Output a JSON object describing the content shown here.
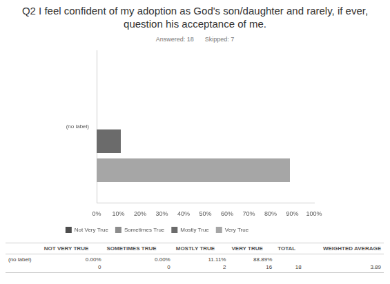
{
  "chart_data": {
    "type": "bar",
    "orientation": "horizontal",
    "title": "Q2 I feel confident of my adoption as God's son/daughter and rarely, if ever, question his acceptance of me.",
    "subtitle": [
      "Answered: 18",
      "Skipped: 7"
    ],
    "categories": [
      "(no label)"
    ],
    "series": [
      {
        "name": "Not Very True",
        "color": "#4d4d4d",
        "values": [
          0
        ]
      },
      {
        "name": "Sometimes True",
        "color": "#8c8c8c",
        "values": [
          0
        ]
      },
      {
        "name": "Mostly True",
        "color": "#6b6b6b",
        "values": [
          11.11
        ]
      },
      {
        "name": "Very True",
        "color": "#a6a6a6",
        "values": [
          88.89
        ]
      }
    ],
    "xlim": [
      0,
      100
    ],
    "xticks": [
      {
        "value": 0,
        "label": "0%"
      },
      {
        "value": 10,
        "label": "10%"
      },
      {
        "value": 20,
        "label": "20%"
      },
      {
        "value": 30,
        "label": "30%"
      },
      {
        "value": 40,
        "label": "40%"
      },
      {
        "value": 50,
        "label": "50%"
      },
      {
        "value": 60,
        "label": "60%"
      },
      {
        "value": 70,
        "label": "70%"
      },
      {
        "value": 80,
        "label": "80%"
      },
      {
        "value": 90,
        "label": "90%"
      },
      {
        "value": 100,
        "label": "100%"
      }
    ],
    "grid": false,
    "legend": "bottom"
  },
  "table": {
    "columns": [
      null,
      "NOT VERY TRUE",
      "SOMETIMES TRUE",
      "MOSTLY TRUE",
      "VERY TRUE",
      "TOTAL",
      "WEIGHTED AVERAGE"
    ],
    "rows": [
      [
        "(no label)",
        [
          "0.00%",
          "0"
        ],
        [
          "0.00%",
          "0"
        ],
        [
          "11.11%",
          "2"
        ],
        [
          "88.89%",
          "16"
        ],
        [
          "",
          "18"
        ],
        [
          "",
          "3.89"
        ]
      ]
    ]
  }
}
